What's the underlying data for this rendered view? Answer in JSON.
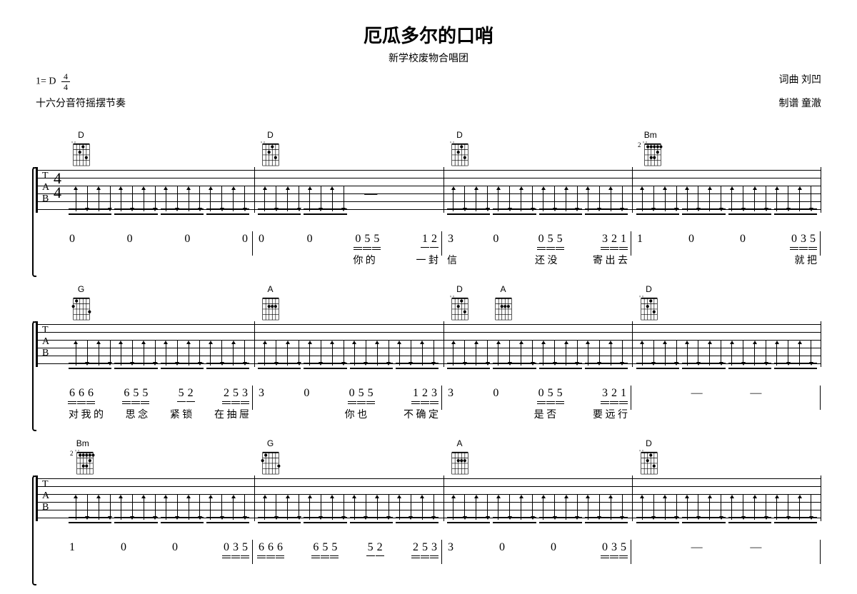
{
  "title": "厄瓜多尔的口哨",
  "subtitle": "新学校废物合唱团",
  "key_label": "1= D",
  "time_num": "4",
  "time_den": "4",
  "rhythm_note": "十六分音符摇摆节奏",
  "credits": {
    "lyricist_label": "词曲 刘凹",
    "arranger_label": "制谱 童澈"
  },
  "systems": [
    {
      "chords": [
        "D",
        "D",
        "D",
        "Bm"
      ],
      "chord_fret_hint": [
        "",
        "",
        "",
        "2"
      ],
      "show_time_sig": true,
      "show_bracket": true,
      "measures": [
        {
          "strokes": 16,
          "pattern": "udududududududud"
        },
        {
          "strokes": 16,
          "pattern": "ududududud",
          "rest_after": true
        },
        {
          "strokes": 16,
          "pattern": "udududududududud"
        },
        {
          "strokes": 16,
          "pattern": "udududududududud"
        }
      ],
      "jianpu": [
        {
          "groups": [
            [
              "0"
            ],
            [
              "0"
            ],
            [
              "0"
            ],
            [
              "0"
            ]
          ]
        },
        {
          "groups": [
            [
              "0"
            ],
            [
              "0"
            ],
            [
              "0",
              "5",
              "5"
            ],
            [
              "1",
              "2"
            ]
          ],
          "ties": [
            [
              2,
              3
            ]
          ]
        },
        {
          "groups": [
            [
              "3"
            ],
            [
              "0"
            ],
            [
              "0",
              "5",
              "5"
            ],
            [
              "3",
              "2",
              "1"
            ]
          ],
          "ties": [
            [
              3,
              4
            ]
          ]
        },
        {
          "groups": [
            [
              "1"
            ],
            [
              "0"
            ],
            [
              "0"
            ],
            [
              "0",
              "3",
              "5"
            ]
          ]
        }
      ],
      "lyrics": [
        [],
        [
          "",
          "",
          "你 的",
          "一 封"
        ],
        [
          "信",
          "",
          "还 没",
          "寄 出 去"
        ],
        [
          "",
          "",
          "",
          "就 把"
        ]
      ]
    },
    {
      "chords": [
        "G",
        "A",
        "D",
        "A",
        "D"
      ],
      "chord_positions": [
        0,
        1,
        2,
        2.5,
        3
      ],
      "show_bracket": true,
      "measures": [
        {
          "strokes": 16,
          "pattern": "udududududududud"
        },
        {
          "strokes": 16,
          "pattern": "udududududududud"
        },
        {
          "strokes": 16,
          "pattern": "udududududududud"
        },
        {
          "strokes": 16,
          "pattern": "udududududududud"
        }
      ],
      "jianpu": [
        {
          "groups": [
            [
              "6",
              "6",
              "6"
            ],
            [
              "6",
              "5",
              "5"
            ],
            [
              "5",
              "2"
            ],
            [
              "2",
              "5",
              "3"
            ]
          ],
          "ties": [
            [
              0,
              1
            ],
            [
              3,
              4
            ]
          ]
        },
        {
          "groups": [
            [
              "3"
            ],
            [
              "0"
            ],
            [
              "0",
              "5",
              "5"
            ],
            [
              "1",
              "2",
              "3"
            ]
          ],
          "ties": [
            [
              3,
              4
            ]
          ]
        },
        {
          "groups": [
            [
              "3"
            ],
            [
              "0"
            ],
            [
              "0",
              "5",
              "5"
            ],
            [
              "3",
              "2",
              "1"
            ]
          ],
          "ties": [
            [
              3,
              4
            ]
          ]
        },
        {
          "groups": [
            [
              ""
            ],
            [
              "—"
            ],
            [
              "—"
            ],
            [
              ""
            ]
          ]
        }
      ],
      "lyrics": [
        [
          "对 我 的",
          "思 念",
          "紧 锁",
          "在 抽 屉"
        ],
        [
          "",
          "",
          "你 也",
          "不 确 定"
        ],
        [
          "",
          "",
          "是 否",
          "要 远 行"
        ],
        []
      ]
    },
    {
      "chords": [
        "Bm",
        "G",
        "A",
        "D"
      ],
      "chord_fret_hint": [
        "2",
        "",
        "",
        ""
      ],
      "chord_positions": [
        0,
        1.3,
        2,
        3
      ],
      "show_bracket": true,
      "measures": [
        {
          "strokes": 16,
          "pattern": "udududududududud"
        },
        {
          "strokes": 16,
          "pattern": "udududududududud"
        },
        {
          "strokes": 16,
          "pattern": "udududududududud"
        },
        {
          "strokes": 16,
          "pattern": "udududududududud"
        }
      ],
      "jianpu": [
        {
          "groups": [
            [
              "1"
            ],
            [
              "0"
            ],
            [
              "0"
            ],
            [
              "0",
              "3",
              "5"
            ]
          ]
        },
        {
          "groups": [
            [
              "6",
              "6",
              "6"
            ],
            [
              "6",
              "5",
              "5"
            ],
            [
              "5",
              "2"
            ],
            [
              "2",
              "5",
              "3"
            ]
          ]
        },
        {
          "groups": [
            [
              "3"
            ],
            [
              "0"
            ],
            [
              "0"
            ],
            [
              "0",
              "3",
              "5"
            ]
          ]
        },
        {
          "groups": [
            [
              ""
            ],
            [
              "—"
            ],
            [
              "—"
            ],
            [
              ""
            ]
          ]
        }
      ],
      "lyrics": []
    }
  ]
}
